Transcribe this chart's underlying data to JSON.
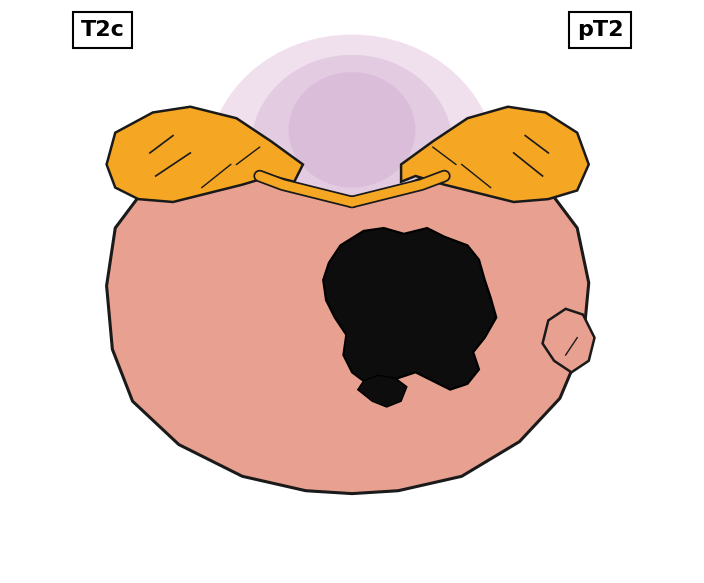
{
  "bg_color": "#ffffff",
  "label_left": "T2c",
  "label_right": "pT2",
  "label_fontsize": 16,
  "label_fontweight": "bold",
  "prostate_color": "#E8A090",
  "prostate_edge_color": "#1a1a1a",
  "seminal_vesicle_color": "#F5A623",
  "seminal_vesicle_edge_color": "#1a1a1a",
  "tumour_color": "#0d0d0d",
  "tumour_edge_color": "#000000",
  "glow_color": "#C8A0C8",
  "figsize": [
    7.04,
    5.83
  ],
  "dpi": 100
}
